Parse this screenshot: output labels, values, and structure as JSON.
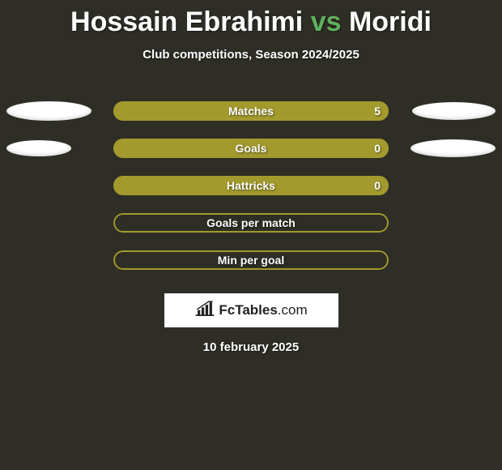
{
  "header": {
    "title_player1": "Hossain Ebrahimi",
    "title_vs": "vs",
    "title_player2": "Moridi",
    "accent_color": "#5fb05c",
    "title_fontsize": 34
  },
  "subtitle": "Club competitions, Season 2024/2025",
  "styling": {
    "background_color": "#2f2e26",
    "pill_fill_color": "#a29a2d",
    "pill_border_color": "#a29a2d",
    "pill_width": 340,
    "pill_height": 24,
    "pill_radius": 12,
    "ellipse_color": "#ffffff",
    "label_fontsize": 14,
    "label_color": "#ffffff"
  },
  "stats": [
    {
      "label": "Matches",
      "value": "5",
      "fill_percent": 100,
      "show_value": true,
      "left_ellipse_w": 105,
      "left_ellipse_h": 24,
      "right_ellipse_w": 103,
      "right_ellipse_h": 22
    },
    {
      "label": "Goals",
      "value": "0",
      "fill_percent": 100,
      "show_value": true,
      "left_ellipse_w": 80,
      "left_ellipse_h": 20,
      "right_ellipse_w": 105,
      "right_ellipse_h": 22
    },
    {
      "label": "Hattricks",
      "value": "0",
      "fill_percent": 100,
      "show_value": true,
      "left_ellipse_w": 0,
      "left_ellipse_h": 0,
      "right_ellipse_w": 0,
      "right_ellipse_h": 0
    },
    {
      "label": "Goals per match",
      "value": "",
      "fill_percent": 0,
      "show_value": false,
      "left_ellipse_w": 0,
      "left_ellipse_h": 0,
      "right_ellipse_w": 0,
      "right_ellipse_h": 0
    },
    {
      "label": "Min per goal",
      "value": "",
      "fill_percent": 0,
      "show_value": false,
      "left_ellipse_w": 0,
      "left_ellipse_h": 0,
      "right_ellipse_w": 0,
      "right_ellipse_h": 0
    }
  ],
  "brand": {
    "text_bold": "FcTables",
    "text_light": ".com",
    "box_bg": "#ffffff",
    "text_color": "#222222"
  },
  "date": "10 february 2025"
}
